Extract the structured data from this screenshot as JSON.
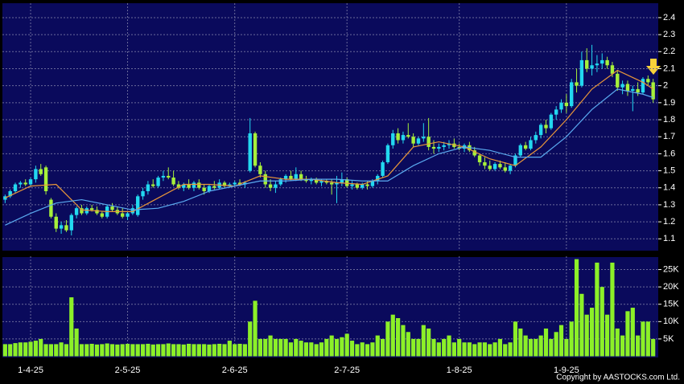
{
  "chart_data": [
    {
      "type": "candlestick",
      "open": [
        1.33,
        1.35,
        1.38,
        1.42,
        1.43,
        1.42,
        1.45,
        1.51,
        1.52,
        1.33,
        1.23,
        1.16,
        1.18,
        1.15,
        1.24,
        1.28,
        1.25,
        1.28,
        1.27,
        1.25,
        1.23,
        1.29,
        1.27,
        1.25,
        1.23,
        1.25,
        1.24,
        1.35,
        1.38,
        1.42,
        1.41,
        1.46,
        1.47,
        1.46,
        1.42,
        1.4,
        1.42,
        1.4,
        1.43,
        1.4,
        1.38,
        1.41,
        1.4,
        1.43,
        1.41,
        1.42,
        1.43,
        1.42,
        1.5,
        1.72,
        1.53,
        1.48,
        1.42,
        1.4,
        1.42,
        1.45,
        1.47,
        1.45,
        1.48,
        1.45,
        1.44,
        1.45,
        1.43,
        1.44,
        1.43,
        1.42,
        1.43,
        1.45,
        1.41,
        1.42,
        1.4,
        1.42,
        1.41,
        1.44,
        1.47,
        1.55,
        1.65,
        1.72,
        1.68,
        1.71,
        1.7,
        1.66,
        1.69,
        1.7,
        1.64,
        1.63,
        1.64,
        1.65,
        1.66,
        1.64,
        1.63,
        1.65,
        1.62,
        1.59,
        1.55,
        1.53,
        1.51,
        1.54,
        1.52,
        1.5,
        1.53,
        1.59,
        1.65,
        1.63,
        1.68,
        1.71,
        1.77,
        1.75,
        1.83,
        1.86,
        1.9,
        1.88,
        2.02,
        2.0,
        2.15,
        2.1,
        2.12,
        2.13,
        2.15,
        2.12,
        2.07,
        1.99,
        2.01,
        1.97,
        1.98,
        1.96,
        2.04,
        2.02
      ],
      "high": [
        1.36,
        1.39,
        1.43,
        1.44,
        1.45,
        1.46,
        1.53,
        1.54,
        1.53,
        1.34,
        1.25,
        1.2,
        1.21,
        1.25,
        1.29,
        1.3,
        1.29,
        1.3,
        1.29,
        1.26,
        1.3,
        1.31,
        1.29,
        1.28,
        1.26,
        1.3,
        1.36,
        1.4,
        1.44,
        1.45,
        1.47,
        1.5,
        1.52,
        1.5,
        1.44,
        1.43,
        1.45,
        1.44,
        1.45,
        1.42,
        1.42,
        1.44,
        1.45,
        1.44,
        1.43,
        1.44,
        1.45,
        1.44,
        1.81,
        1.73,
        1.55,
        1.5,
        1.45,
        1.44,
        1.46,
        1.48,
        1.5,
        1.52,
        1.5,
        1.47,
        1.46,
        1.46,
        1.45,
        1.45,
        1.45,
        1.47,
        1.49,
        1.46,
        1.44,
        1.43,
        1.43,
        1.44,
        1.45,
        1.48,
        1.56,
        1.66,
        1.74,
        1.75,
        1.73,
        1.78,
        1.72,
        1.7,
        1.78,
        1.81,
        1.68,
        1.66,
        1.67,
        1.68,
        1.69,
        1.66,
        1.66,
        1.67,
        1.64,
        1.6,
        1.58,
        1.56,
        1.55,
        1.56,
        1.55,
        1.54,
        1.6,
        1.66,
        1.67,
        1.7,
        1.73,
        1.78,
        1.8,
        1.84,
        1.88,
        1.92,
        1.95,
        2.04,
        2.1,
        2.2,
        2.22,
        2.24,
        2.18,
        2.19,
        2.17,
        2.14,
        2.09,
        2.03,
        2.03,
        2.0,
        2.02,
        2.05,
        2.06,
        2.04
      ],
      "low": [
        1.31,
        1.34,
        1.37,
        1.4,
        1.41,
        1.41,
        1.43,
        1.47,
        1.36,
        1.22,
        1.14,
        1.13,
        1.14,
        1.12,
        1.22,
        1.24,
        1.24,
        1.26,
        1.24,
        1.22,
        1.22,
        1.26,
        1.24,
        1.22,
        1.21,
        1.24,
        1.23,
        1.33,
        1.36,
        1.4,
        1.4,
        1.44,
        1.45,
        1.41,
        1.39,
        1.38,
        1.39,
        1.38,
        1.39,
        1.36,
        1.37,
        1.39,
        1.39,
        1.4,
        1.4,
        1.41,
        1.41,
        1.4,
        1.49,
        1.52,
        1.46,
        1.4,
        1.38,
        1.37,
        1.41,
        1.43,
        1.44,
        1.44,
        1.44,
        1.43,
        1.42,
        1.42,
        1.41,
        1.42,
        1.36,
        1.31,
        1.41,
        1.4,
        1.39,
        1.39,
        1.39,
        1.39,
        1.4,
        1.42,
        1.46,
        1.54,
        1.63,
        1.66,
        1.66,
        1.69,
        1.64,
        1.65,
        1.67,
        1.62,
        1.6,
        1.61,
        1.62,
        1.63,
        1.63,
        1.62,
        1.61,
        1.61,
        1.58,
        1.53,
        1.51,
        1.5,
        1.5,
        1.51,
        1.49,
        1.48,
        1.52,
        1.58,
        1.62,
        1.62,
        1.66,
        1.69,
        1.72,
        1.74,
        1.8,
        1.84,
        1.84,
        1.87,
        1.96,
        1.99,
        2.08,
        2.06,
        2.08,
        2.1,
        2.1,
        2.05,
        1.97,
        1.95,
        1.94,
        1.85,
        1.94,
        1.95,
        2.0,
        1.9
      ],
      "close": [
        1.35,
        1.38,
        1.42,
        1.43,
        1.42,
        1.45,
        1.51,
        1.48,
        1.38,
        1.23,
        1.16,
        1.18,
        1.15,
        1.24,
        1.28,
        1.25,
        1.28,
        1.27,
        1.25,
        1.23,
        1.29,
        1.27,
        1.25,
        1.23,
        1.25,
        1.28,
        1.35,
        1.38,
        1.42,
        1.41,
        1.46,
        1.47,
        1.46,
        1.42,
        1.4,
        1.42,
        1.4,
        1.43,
        1.4,
        1.38,
        1.41,
        1.4,
        1.43,
        1.41,
        1.42,
        1.43,
        1.42,
        1.43,
        1.72,
        1.53,
        1.48,
        1.42,
        1.4,
        1.42,
        1.45,
        1.47,
        1.45,
        1.48,
        1.45,
        1.44,
        1.45,
        1.43,
        1.44,
        1.43,
        1.42,
        1.43,
        1.45,
        1.41,
        1.42,
        1.4,
        1.42,
        1.41,
        1.44,
        1.47,
        1.55,
        1.65,
        1.72,
        1.68,
        1.71,
        1.7,
        1.66,
        1.69,
        1.7,
        1.64,
        1.63,
        1.64,
        1.65,
        1.66,
        1.64,
        1.63,
        1.65,
        1.62,
        1.59,
        1.55,
        1.53,
        1.51,
        1.54,
        1.52,
        1.5,
        1.53,
        1.59,
        1.65,
        1.63,
        1.68,
        1.71,
        1.77,
        1.75,
        1.83,
        1.86,
        1.9,
        1.88,
        2.02,
        2.0,
        2.15,
        2.1,
        2.12,
        2.13,
        2.15,
        2.12,
        2.07,
        1.99,
        2.01,
        1.97,
        1.98,
        1.96,
        2.04,
        2.02,
        1.92
      ],
      "up_color": "#22d8f0",
      "down_color": "#a6f03a",
      "lines": [
        {
          "color": "#e8963a",
          "x": [
            0,
            5,
            10,
            15,
            20,
            25,
            30,
            35,
            40,
            45,
            50,
            55,
            60,
            65,
            70,
            75,
            80,
            85,
            90,
            95,
            100,
            105,
            110,
            115,
            120,
            125,
            127
          ],
          "values": [
            1.34,
            1.41,
            1.42,
            1.27,
            1.26,
            1.26,
            1.34,
            1.42,
            1.42,
            1.41,
            1.47,
            1.45,
            1.45,
            1.43,
            1.42,
            1.47,
            1.64,
            1.67,
            1.64,
            1.57,
            1.53,
            1.64,
            1.8,
            1.98,
            2.09,
            2.02,
            1.98
          ]
        },
        {
          "color": "#5aaaf0",
          "x": [
            0,
            5,
            10,
            15,
            20,
            25,
            30,
            35,
            40,
            45,
            50,
            55,
            60,
            65,
            70,
            75,
            80,
            85,
            90,
            95,
            100,
            105,
            110,
            115,
            120,
            125,
            127
          ],
          "values": [
            1.18,
            1.25,
            1.31,
            1.33,
            1.3,
            1.27,
            1.28,
            1.32,
            1.38,
            1.41,
            1.44,
            1.44,
            1.45,
            1.45,
            1.44,
            1.44,
            1.53,
            1.6,
            1.64,
            1.62,
            1.58,
            1.58,
            1.7,
            1.86,
            1.98,
            1.95,
            1.93
          ]
        }
      ],
      "xlim": [
        -1,
        128
      ],
      "xticks": [
        5,
        24,
        45,
        67,
        89,
        110
      ],
      "ylim": [
        1.04,
        2.48
      ],
      "yticks": [
        1.1,
        1.2,
        1.3,
        1.4,
        1.5,
        1.6,
        1.7,
        1.8,
        1.9,
        2,
        2.1,
        2.2,
        2.3,
        2.4
      ],
      "grid": true
    },
    {
      "type": "bar",
      "values": [
        3500,
        3500,
        3800,
        4000,
        4000,
        4200,
        4500,
        5000,
        3500,
        3500,
        3500,
        4000,
        3500,
        17000,
        8000,
        3500,
        3500,
        3600,
        3400,
        3500,
        3700,
        3500,
        3400,
        3500,
        3600,
        3500,
        3500,
        3500,
        3600,
        3400,
        3500,
        3500,
        3700,
        3500,
        3500,
        3400,
        3600,
        3500,
        3500,
        3500,
        3400,
        3500,
        3600,
        3500,
        4500,
        3500,
        3600,
        3500,
        10000,
        16000,
        5000,
        5000,
        6000,
        5000,
        5000,
        5000,
        4000,
        5000,
        4500,
        4000,
        4000,
        3500,
        4000,
        5000,
        6000,
        5000,
        5500,
        6500,
        4500,
        3500,
        4000,
        3500,
        4000,
        6000,
        5000,
        10000,
        12000,
        11000,
        9000,
        7000,
        5000,
        5000,
        9000,
        8000,
        5000,
        4000,
        5000,
        6000,
        4000,
        5000,
        4000,
        4000,
        3500,
        4000,
        4000,
        3500,
        4000,
        5000,
        3500,
        4000,
        10000,
        8000,
        6000,
        5000,
        5000,
        6000,
        8000,
        5000,
        7000,
        9000,
        5000,
        10000,
        28000,
        18000,
        12000,
        14000,
        27000,
        20000,
        12000,
        27000,
        8000,
        6000,
        13000,
        14000,
        6000,
        10000,
        10000,
        5000
      ],
      "color": "#8cf028",
      "xlim": [
        -1,
        128
      ],
      "xticks": [
        {
          "value": 5,
          "label": "1-4-25"
        },
        {
          "value": 24,
          "label": "2-5-25"
        },
        {
          "value": 45,
          "label": "2-6-25"
        },
        {
          "value": 67,
          "label": "2-7-25"
        },
        {
          "value": 89,
          "label": "1-8-25"
        },
        {
          "value": 110,
          "label": "1-9-25"
        }
      ],
      "ylim": [
        0,
        28600
      ],
      "yticks": [
        {
          "value": 5000,
          "label": "5K"
        },
        {
          "value": 10000,
          "label": "10K"
        },
        {
          "value": 15000,
          "label": "15K"
        },
        {
          "value": 20000,
          "label": "20K"
        },
        {
          "value": 25000,
          "label": "25K"
        }
      ],
      "grid": true
    }
  ],
  "copyright": "Copyright by AASTOCKS.com Ltd."
}
